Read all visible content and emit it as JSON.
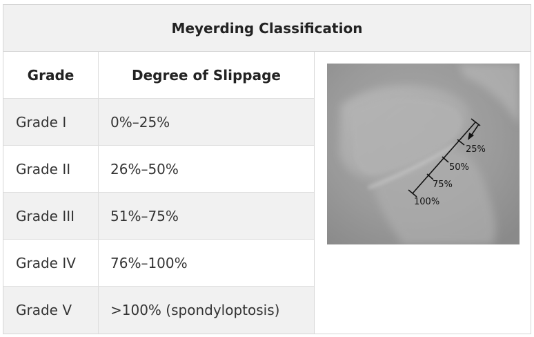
{
  "table": {
    "title": "Meyerding Classification",
    "headers": {
      "grade": "Grade",
      "slippage": "Degree of Slippage"
    },
    "rows": [
      {
        "grade": "Grade I",
        "slippage": "0%–25%"
      },
      {
        "grade": "Grade II",
        "slippage": "26%–50%"
      },
      {
        "grade": "Grade III",
        "slippage": "51%–75%"
      },
      {
        "grade": "Grade IV",
        "slippage": "76%–100%"
      },
      {
        "grade": "Grade V",
        "slippage": ">100% (spondyloptosis)"
      }
    ]
  },
  "xray": {
    "scale_labels": [
      "25%",
      "50%",
      "75%",
      "100%"
    ]
  },
  "colors": {
    "header_bg": "#f1f1f1",
    "border": "#d6d6d6"
  }
}
